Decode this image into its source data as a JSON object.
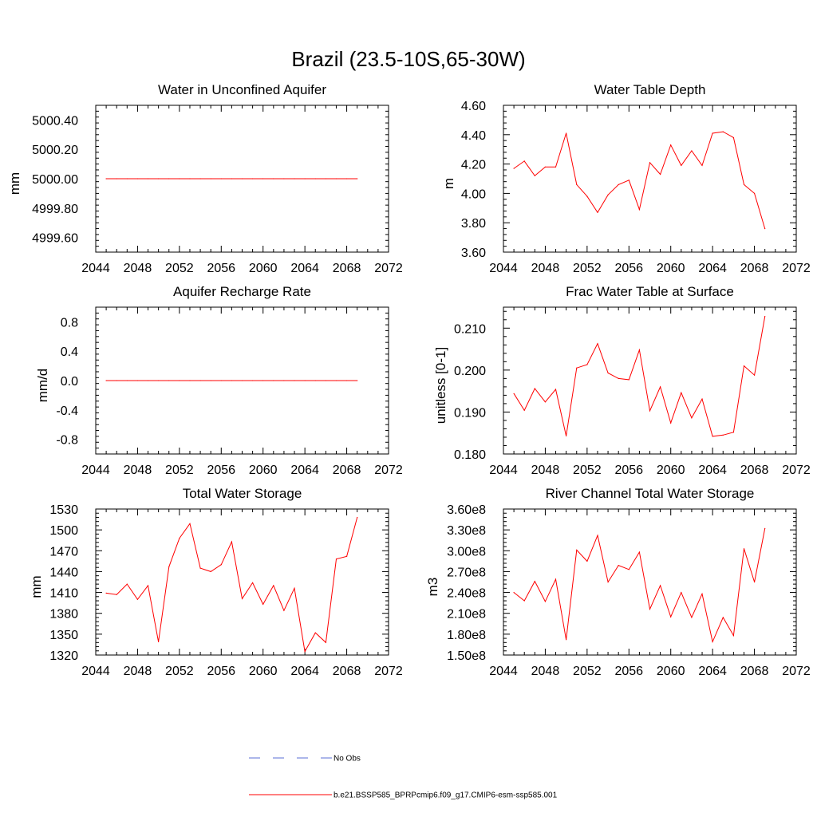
{
  "figure": {
    "title": "Brazil (23.5-10S,65-30W)"
  },
  "colors": {
    "model_line": "#ff0000",
    "obs_line": "#5a6fd6",
    "axes": "#000000"
  },
  "legend": [
    {
      "label": "No Obs",
      "style": "dashed",
      "color": "#5a6fd6"
    },
    {
      "label": "b.e21.BSSP585_BPRPcmip6.f09_g17.CMIP6-esm-ssp585.001",
      "style": "solid",
      "color": "#ff0000"
    }
  ],
  "chart_data": [
    {
      "type": "line",
      "title": "Water in Unconfined Aquifer",
      "xlabel": "",
      "ylabel": "mm",
      "xlim": [
        2044,
        2072
      ],
      "ylim": [
        4999.5,
        5000.5
      ],
      "xticks": [
        2044,
        2048,
        2052,
        2056,
        2060,
        2064,
        2068,
        2072
      ],
      "yticks": [
        4999.6,
        4999.8,
        5000.0,
        5000.2,
        5000.4
      ],
      "ytick_labels": [
        "4999.60",
        "4999.80",
        "5000.00",
        "5000.20",
        "5000.40"
      ],
      "x": [
        2045,
        2046,
        2047,
        2048,
        2049,
        2050,
        2051,
        2052,
        2053,
        2054,
        2055,
        2056,
        2057,
        2058,
        2059,
        2060,
        2061,
        2062,
        2063,
        2064,
        2065,
        2066,
        2067,
        2068,
        2069
      ],
      "series": [
        {
          "values": [
            5000,
            5000,
            5000,
            5000,
            5000,
            5000,
            5000,
            5000,
            5000,
            5000,
            5000,
            5000,
            5000,
            5000,
            5000,
            5000,
            5000,
            5000,
            5000,
            5000,
            5000,
            5000,
            5000,
            5000,
            5000
          ]
        }
      ]
    },
    {
      "type": "line",
      "title": "Water Table Depth",
      "xlabel": "",
      "ylabel": "m",
      "xlim": [
        2044,
        2072
      ],
      "ylim": [
        3.6,
        4.6
      ],
      "xticks": [
        2044,
        2048,
        2052,
        2056,
        2060,
        2064,
        2068,
        2072
      ],
      "yticks": [
        3.6,
        3.8,
        4.0,
        4.2,
        4.4,
        4.6
      ],
      "ytick_labels": [
        "3.60",
        "3.80",
        "4.00",
        "4.20",
        "4.40",
        "4.60"
      ],
      "x": [
        2045,
        2046,
        2047,
        2048,
        2049,
        2050,
        2051,
        2052,
        2053,
        2054,
        2055,
        2056,
        2057,
        2058,
        2059,
        2060,
        2061,
        2062,
        2063,
        2064,
        2065,
        2066,
        2067,
        2068,
        2069
      ],
      "series": [
        {
          "values": [
            4.17,
            4.22,
            4.12,
            4.18,
            4.18,
            4.41,
            4.06,
            3.98,
            3.87,
            3.99,
            4.06,
            4.09,
            3.89,
            4.21,
            4.13,
            4.33,
            4.19,
            4.29,
            4.19,
            4.41,
            4.42,
            4.38,
            4.06,
            4.0,
            3.76
          ]
        }
      ]
    },
    {
      "type": "line",
      "title": "Aquifer Recharge Rate",
      "xlabel": "",
      "ylabel": "mm/d",
      "xlim": [
        2044,
        2072
      ],
      "ylim": [
        -1.0,
        1.0
      ],
      "xticks": [
        2044,
        2048,
        2052,
        2056,
        2060,
        2064,
        2068,
        2072
      ],
      "yticks": [
        -0.8,
        -0.4,
        0.0,
        0.4,
        0.8
      ],
      "ytick_labels": [
        "-0.8",
        "-0.4",
        "0.0",
        "0.4",
        "0.8"
      ],
      "x": [
        2045,
        2046,
        2047,
        2048,
        2049,
        2050,
        2051,
        2052,
        2053,
        2054,
        2055,
        2056,
        2057,
        2058,
        2059,
        2060,
        2061,
        2062,
        2063,
        2064,
        2065,
        2066,
        2067,
        2068,
        2069
      ],
      "series": [
        {
          "values": [
            0,
            0,
            0,
            0,
            0,
            0,
            0,
            0,
            0,
            0,
            0,
            0,
            0,
            0,
            0,
            0,
            0,
            0,
            0,
            0,
            0,
            0,
            0,
            0,
            0
          ]
        }
      ]
    },
    {
      "type": "line",
      "title": "Frac Water Table at Surface",
      "xlabel": "",
      "ylabel": "unitless [0-1]",
      "xlim": [
        2044,
        2072
      ],
      "ylim": [
        0.18,
        0.215
      ],
      "xticks": [
        2044,
        2048,
        2052,
        2056,
        2060,
        2064,
        2068,
        2072
      ],
      "yticks": [
        0.18,
        0.19,
        0.2,
        0.21
      ],
      "ytick_labels": [
        "0.180",
        "0.190",
        "0.200",
        "0.210"
      ],
      "x": [
        2045,
        2046,
        2047,
        2048,
        2049,
        2050,
        2051,
        2052,
        2053,
        2054,
        2055,
        2056,
        2057,
        2058,
        2059,
        2060,
        2061,
        2062,
        2063,
        2064,
        2065,
        2066,
        2067,
        2068,
        2069
      ],
      "series": [
        {
          "values": [
            0.1944,
            0.1904,
            0.1956,
            0.1924,
            0.1954,
            0.1843,
            0.2005,
            0.2013,
            0.2063,
            0.1993,
            0.198,
            0.1977,
            0.2048,
            0.1903,
            0.196,
            0.1874,
            0.1946,
            0.1886,
            0.1931,
            0.1842,
            0.1845,
            0.1852,
            0.201,
            0.1988,
            0.2128
          ]
        }
      ]
    },
    {
      "type": "line",
      "title": "Total Water Storage",
      "xlabel": "",
      "ylabel": "mm",
      "xlim": [
        2044,
        2072
      ],
      "ylim": [
        1320,
        1530
      ],
      "xticks": [
        2044,
        2048,
        2052,
        2056,
        2060,
        2064,
        2068,
        2072
      ],
      "yticks": [
        1320,
        1350,
        1380,
        1410,
        1440,
        1470,
        1500,
        1530
      ],
      "ytick_labels": [
        "1320",
        "1350",
        "1380",
        "1410",
        "1440",
        "1470",
        "1500",
        "1530"
      ],
      "x": [
        2045,
        2046,
        2047,
        2048,
        2049,
        2050,
        2051,
        2052,
        2053,
        2054,
        2055,
        2056,
        2057,
        2058,
        2059,
        2060,
        2061,
        2062,
        2063,
        2064,
        2065,
        2066,
        2067,
        2068,
        2069
      ],
      "series": [
        {
          "values": [
            1409,
            1407,
            1422,
            1400,
            1420,
            1339,
            1447,
            1488,
            1509,
            1445,
            1440,
            1450,
            1483,
            1401,
            1424,
            1393,
            1420,
            1384,
            1416,
            1325,
            1352,
            1338,
            1458,
            1462,
            1518
          ]
        }
      ]
    },
    {
      "type": "line",
      "title": "River Channel Total Water Storage",
      "xlabel": "",
      "ylabel": "m3",
      "xlim": [
        2044,
        2072
      ],
      "ylim": [
        150000000,
        360000000
      ],
      "xticks": [
        2044,
        2048,
        2052,
        2056,
        2060,
        2064,
        2068,
        2072
      ],
      "yticks": [
        150000000,
        180000000,
        210000000,
        240000000,
        270000000,
        300000000,
        330000000,
        360000000
      ],
      "ytick_labels": [
        "1.50e8",
        "1.80e8",
        "2.10e8",
        "2.40e8",
        "2.70e8",
        "3.00e8",
        "3.30e8",
        "3.60e8"
      ],
      "x": [
        2045,
        2046,
        2047,
        2048,
        2049,
        2050,
        2051,
        2052,
        2053,
        2054,
        2055,
        2056,
        2057,
        2058,
        2059,
        2060,
        2061,
        2062,
        2063,
        2064,
        2065,
        2066,
        2067,
        2068,
        2069
      ],
      "series": [
        {
          "values": [
            240000000,
            228000000,
            256000000,
            227000000,
            259000000,
            172000000,
            301000000,
            285000000,
            322000000,
            255000000,
            279000000,
            273000000,
            298000000,
            216000000,
            250000000,
            205000000,
            240000000,
            204000000,
            238000000,
            169000000,
            204000000,
            178000000,
            303000000,
            255000000,
            332000000
          ]
        }
      ]
    }
  ]
}
